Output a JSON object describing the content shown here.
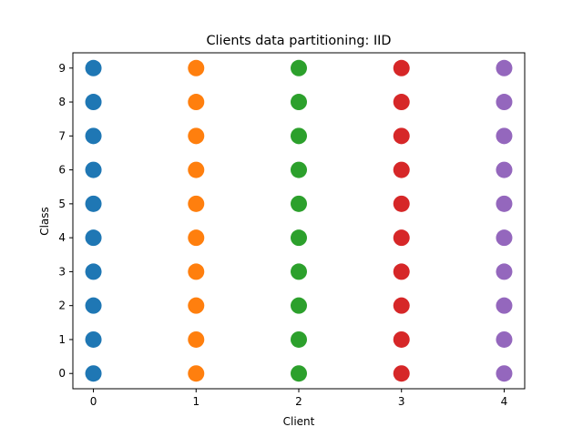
{
  "chart_data": {
    "type": "scatter",
    "title": "Clients data partitioning: IID",
    "xlabel": "Client",
    "ylabel": "Class",
    "x_ticks": [
      0,
      1,
      2,
      3,
      4
    ],
    "y_ticks": [
      0,
      1,
      2,
      3,
      4,
      5,
      6,
      7,
      8,
      9
    ],
    "xlim": [
      -0.2,
      4.2
    ],
    "ylim": [
      -0.45,
      9.45
    ],
    "grid": false,
    "series": [
      {
        "x": 0,
        "classes": [
          0,
          1,
          2,
          3,
          4,
          5,
          6,
          7,
          8,
          9
        ],
        "color": "#1f77b4"
      },
      {
        "x": 1,
        "classes": [
          0,
          1,
          2,
          3,
          4,
          5,
          6,
          7,
          8,
          9
        ],
        "color": "#ff7f0e"
      },
      {
        "x": 2,
        "classes": [
          0,
          1,
          2,
          3,
          4,
          5,
          6,
          7,
          8,
          9
        ],
        "color": "#2ca02c"
      },
      {
        "x": 3,
        "classes": [
          0,
          1,
          2,
          3,
          4,
          5,
          6,
          7,
          8,
          9
        ],
        "color": "#d62728"
      },
      {
        "x": 4,
        "classes": [
          0,
          1,
          2,
          3,
          4,
          5,
          6,
          7,
          8,
          9
        ],
        "color": "#9467bd"
      }
    ]
  }
}
